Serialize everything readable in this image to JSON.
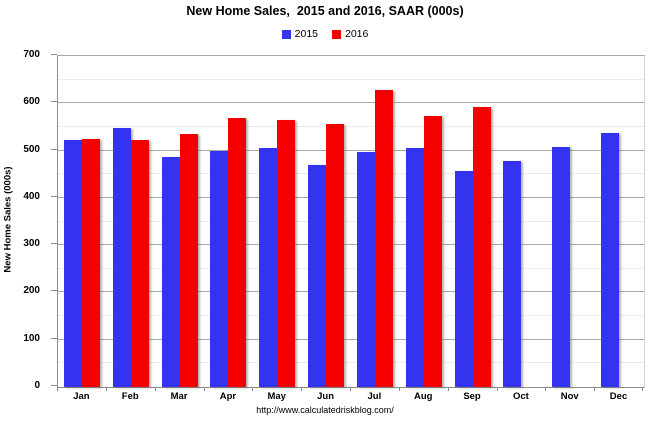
{
  "chart_data": {
    "type": "bar",
    "title": "New Home Sales,  2015 and 2016, SAAR (000s)",
    "categories": [
      "Jan",
      "Feb",
      "Mar",
      "Apr",
      "May",
      "Jun",
      "Jul",
      "Aug",
      "Sep",
      "Oct",
      "Nov",
      "Dec"
    ],
    "series": [
      {
        "name": "2015",
        "color": "#3333f0",
        "values": [
          522,
          548,
          487,
          500,
          505,
          470,
          497,
          505,
          457,
          477,
          507,
          537
        ]
      },
      {
        "name": "2016",
        "color": "#f50000",
        "values": [
          525,
          523,
          536,
          569,
          565,
          557,
          629,
          574,
          592,
          null,
          null,
          null
        ]
      }
    ],
    "xlabel": "",
    "ylabel": "New Home Sales (000s)",
    "ylim": [
      0,
      700
    ],
    "ytick_interval": 100,
    "minor_grid_interval": 50,
    "grid": "on",
    "legend_position": "top-center",
    "footer": "http://www.calculatedriskblog.com/"
  }
}
